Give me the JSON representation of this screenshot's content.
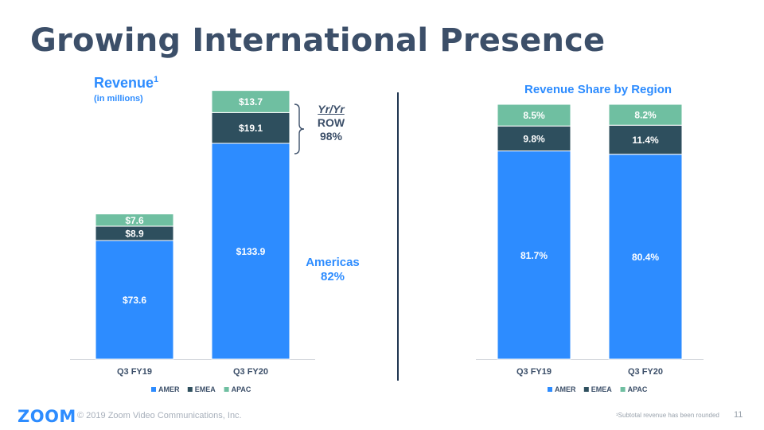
{
  "slide": {
    "title": "Growing International Presence",
    "footer_logo": "ZOOM",
    "copyright": "© 2019 Zoom Video Communications, Inc.",
    "footnote": "¹Subtotal revenue has been rounded",
    "page_number": "11"
  },
  "colors": {
    "AMER": "#2d8cff",
    "EMEA": "#2e4f5e",
    "APAC": "#6fbfa1",
    "accent": "#2d8cff",
    "heading": "#3c4f69"
  },
  "annotations": {
    "yryr_heading": "Yr/Yr",
    "row_label": "ROW",
    "row_value": "98%",
    "americas_label": "Americas",
    "americas_value": "82%"
  },
  "chart_data": [
    {
      "type": "bar",
      "stacked": true,
      "title": "Revenue",
      "title_superscript": "1",
      "subtitle": "(in millions)",
      "categories": [
        "Q3 FY19",
        "Q3 FY20"
      ],
      "series": [
        {
          "name": "AMER",
          "values": [
            73.6,
            133.9
          ],
          "labels": [
            "$73.6",
            "$133.9"
          ]
        },
        {
          "name": "EMEA",
          "values": [
            8.9,
            19.1
          ],
          "labels": [
            "$8.9",
            "$19.1"
          ]
        },
        {
          "name": "APAC",
          "values": [
            7.6,
            13.7
          ],
          "labels": [
            "$7.6",
            "$13.7"
          ]
        }
      ],
      "ylim": [
        0,
        168
      ],
      "legend": "bottom"
    },
    {
      "type": "bar",
      "stacked": true,
      "title": "Revenue Share by Region",
      "categories": [
        "Q3 FY19",
        "Q3 FY20"
      ],
      "series": [
        {
          "name": "AMER",
          "values": [
            81.7,
            80.4
          ],
          "labels": [
            "81.7%",
            "80.4%"
          ]
        },
        {
          "name": "EMEA",
          "values": [
            9.8,
            11.4
          ],
          "labels": [
            "9.8%",
            "11.4%"
          ]
        },
        {
          "name": "APAC",
          "values": [
            8.5,
            8.2
          ],
          "labels": [
            "8.5%",
            "8.2%"
          ]
        }
      ],
      "ylim": [
        0,
        100
      ],
      "legend": "bottom"
    }
  ]
}
